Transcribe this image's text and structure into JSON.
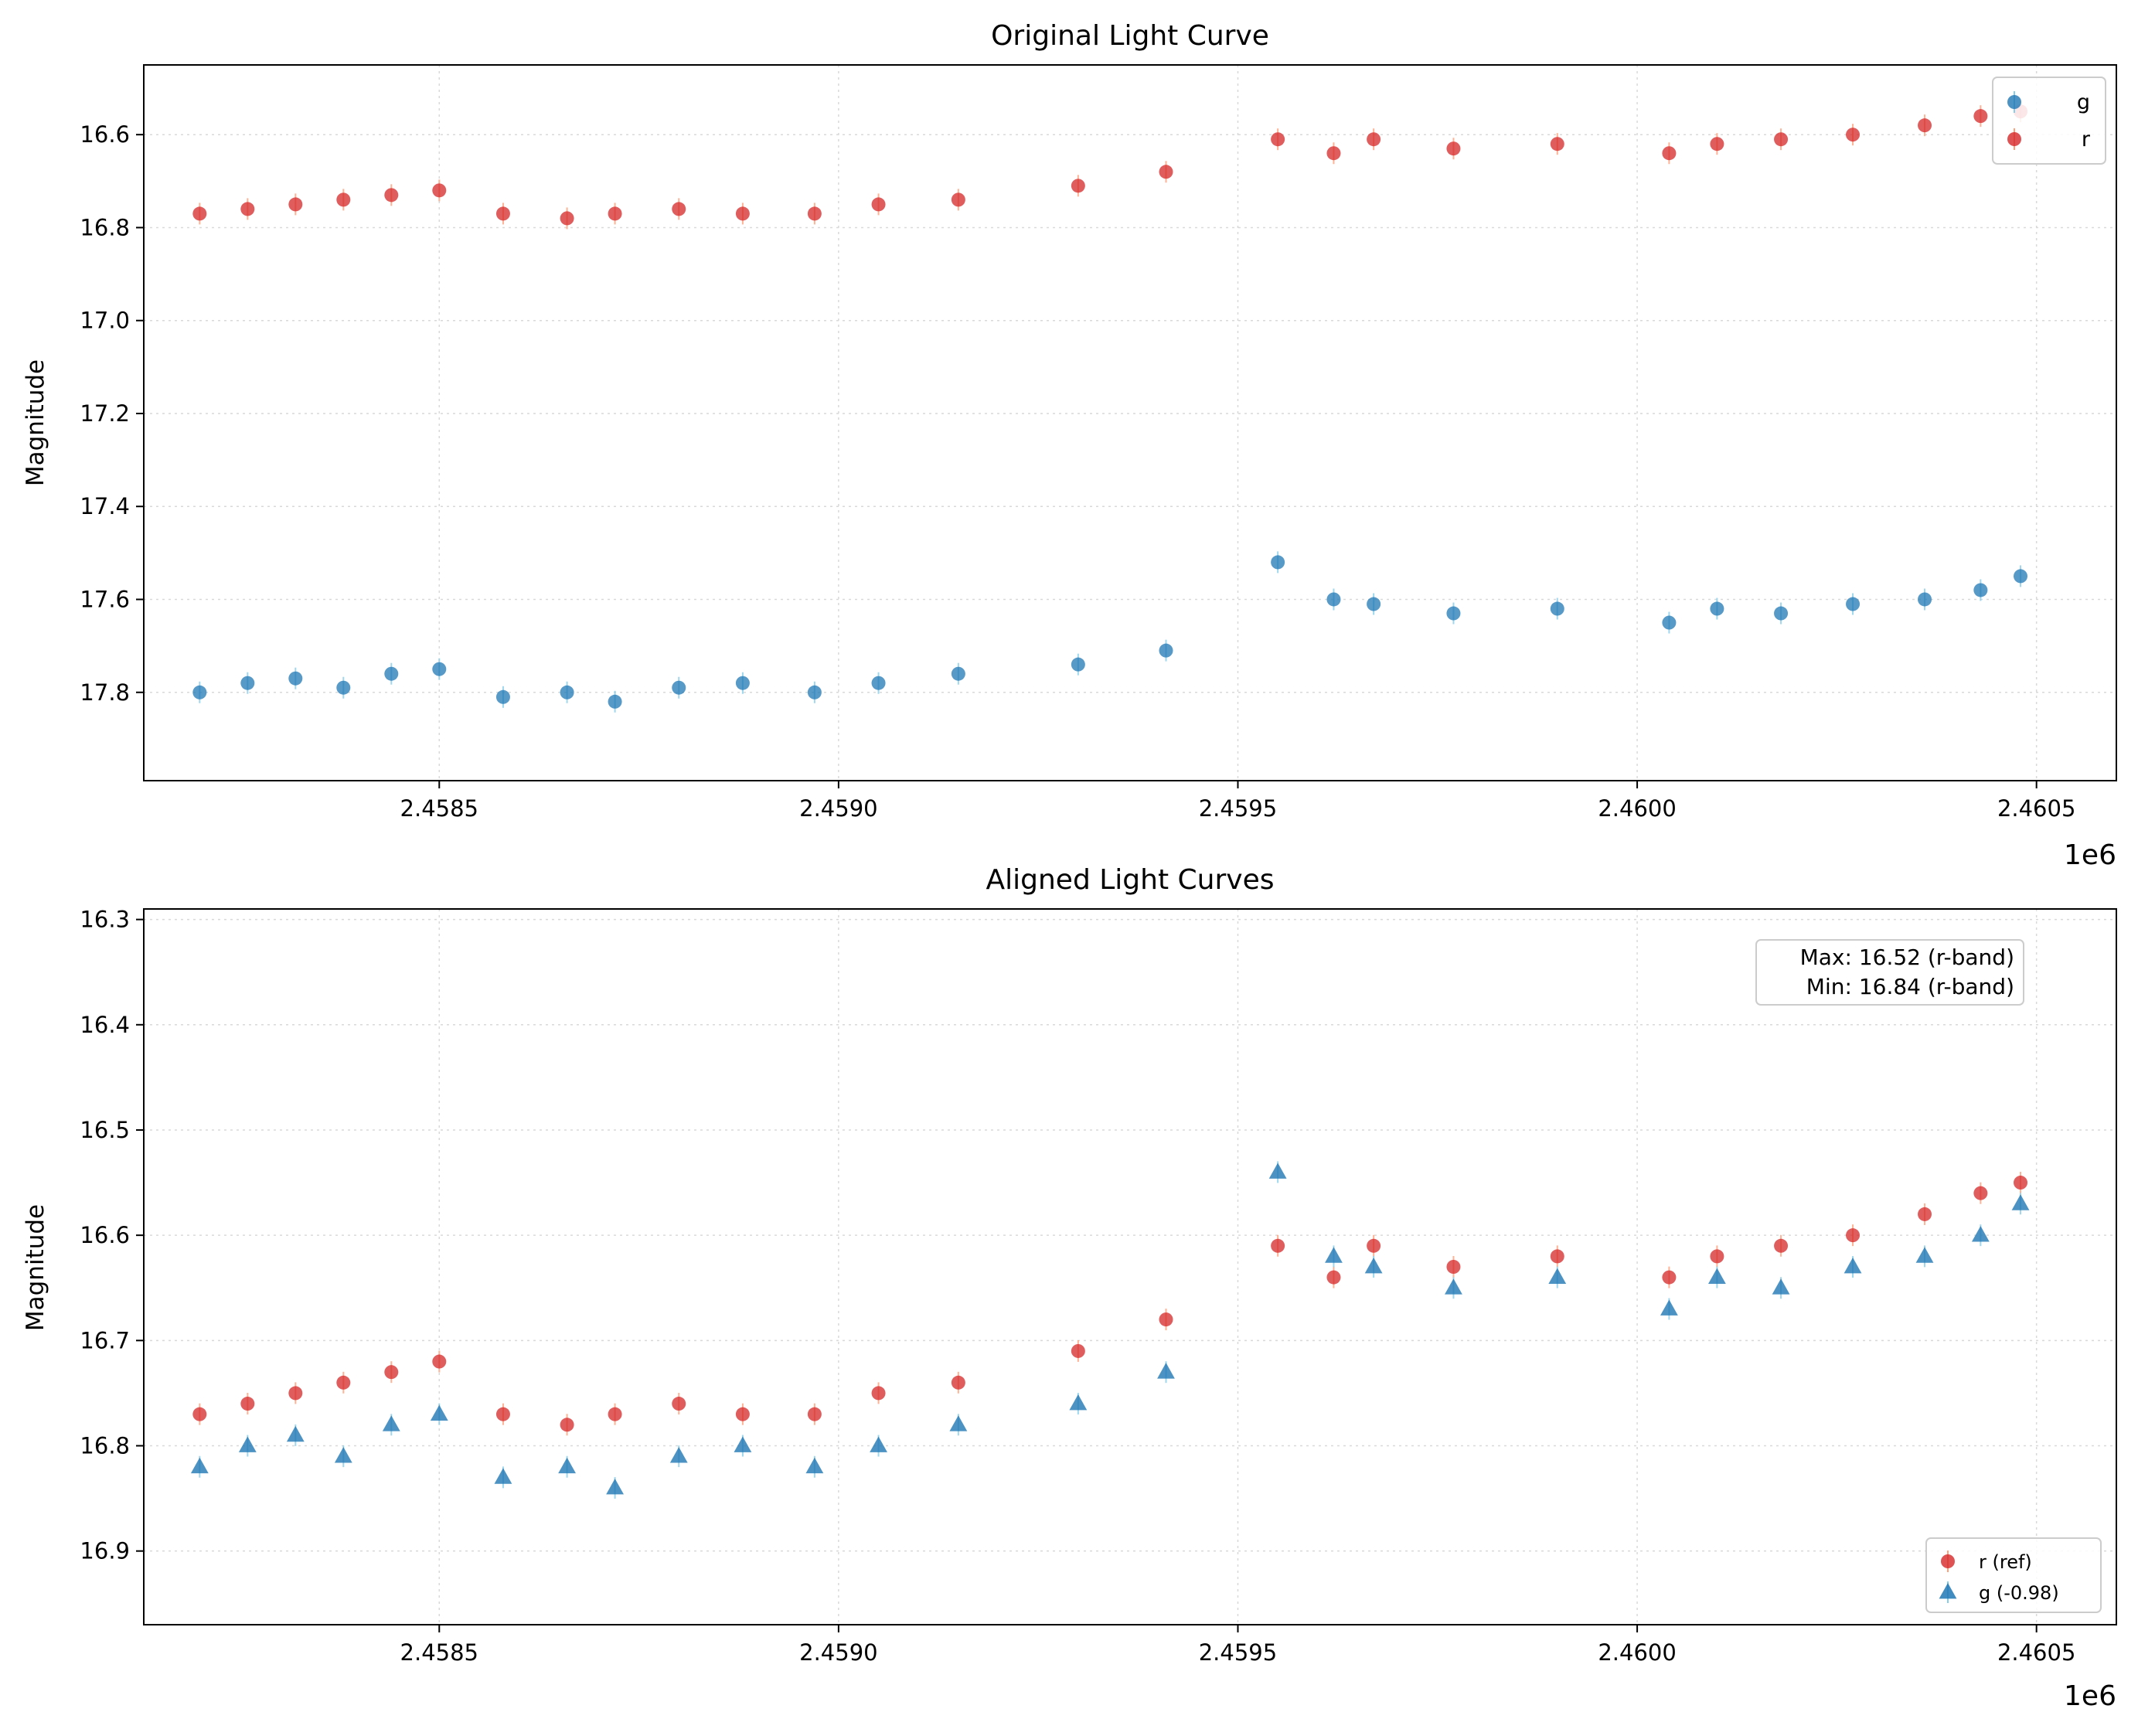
{
  "colors": {
    "g": "#1f77b4",
    "g_err": "#87ceeb",
    "r": "#d62728",
    "r_err": "#ffa07a",
    "grid": "#d9d9d9"
  },
  "chart_data": [
    {
      "type": "scatter",
      "title": "Original Light Curve",
      "xlabel": "",
      "ylabel": "Magnitude",
      "x_offset_label": "1e6",
      "xlim": [
        2.45813,
        2.4606
      ],
      "ylim": [
        17.99,
        16.45
      ],
      "y_inverted": true,
      "grid": true,
      "legend_position": "top-right",
      "xticks": [
        2.4585,
        2.459,
        2.4595,
        2.46,
        2.4605
      ],
      "xtick_labels": [
        "2.4585",
        "2.4590",
        "2.4595",
        "2.4600",
        "2.4605"
      ],
      "yticks": [
        16.6,
        16.8,
        17.0,
        17.2,
        17.4,
        17.6,
        17.8
      ],
      "ytick_labels": [
        "16.6",
        "16.8",
        "17.0",
        "17.2",
        "17.4",
        "17.6",
        "17.8"
      ],
      "series": [
        {
          "name": "g",
          "marker": "circle",
          "color": "#1f77b4",
          "x": [
            2.4582,
            2.45826,
            2.45832,
            2.45838,
            2.45844,
            2.4585,
            2.45858,
            2.45866,
            2.45872,
            2.4588,
            2.45888,
            2.45897,
            2.45905,
            2.45915,
            2.4593,
            2.45941,
            2.45955,
            2.45962,
            2.45967,
            2.45977,
            2.4599,
            2.46004,
            2.4601,
            2.46018,
            2.46027,
            2.46036,
            2.46043,
            2.46048
          ],
          "y": [
            17.8,
            17.78,
            17.77,
            17.79,
            17.76,
            17.75,
            17.81,
            17.8,
            17.82,
            17.79,
            17.78,
            17.8,
            17.78,
            17.76,
            17.74,
            17.71,
            17.52,
            17.6,
            17.61,
            17.63,
            17.62,
            17.65,
            17.62,
            17.63,
            17.61,
            17.6,
            17.58,
            17.55
          ]
        },
        {
          "name": "r",
          "marker": "circle",
          "color": "#d62728",
          "x": [
            2.4582,
            2.45826,
            2.45832,
            2.45838,
            2.45844,
            2.4585,
            2.45858,
            2.45866,
            2.45872,
            2.4588,
            2.45888,
            2.45897,
            2.45905,
            2.45915,
            2.4593,
            2.45941,
            2.45955,
            2.45962,
            2.45967,
            2.45977,
            2.4599,
            2.46004,
            2.4601,
            2.46018,
            2.46027,
            2.46036,
            2.46043,
            2.46048
          ],
          "y": [
            16.77,
            16.76,
            16.75,
            16.74,
            16.73,
            16.72,
            16.77,
            16.78,
            16.77,
            16.76,
            16.77,
            16.77,
            16.75,
            16.74,
            16.71,
            16.68,
            16.61,
            16.64,
            16.61,
            16.63,
            16.62,
            16.64,
            16.62,
            16.61,
            16.6,
            16.58,
            16.56,
            16.55
          ]
        }
      ]
    },
    {
      "type": "scatter",
      "title": "Aligned Light Curves",
      "xlabel": "",
      "ylabel": "Magnitude",
      "x_offset_label": "1e6",
      "xlim": [
        2.45813,
        2.4606
      ],
      "ylim": [
        16.97,
        16.29
      ],
      "y_inverted": true,
      "grid": true,
      "legend_position": "bottom-right",
      "xticks": [
        2.4585,
        2.459,
        2.4595,
        2.46,
        2.4605
      ],
      "xtick_labels": [
        "2.4585",
        "2.4590",
        "2.4595",
        "2.4600",
        "2.4605"
      ],
      "yticks": [
        16.3,
        16.4,
        16.5,
        16.6,
        16.7,
        16.8,
        16.9
      ],
      "ytick_labels": [
        "16.3",
        "16.4",
        "16.5",
        "16.6",
        "16.7",
        "16.8",
        "16.9"
      ],
      "annotation": [
        "Max: 16.52 (r-band)",
        "Min: 16.84 (r-band)"
      ],
      "series": [
        {
          "name": "r (ref)",
          "marker": "circle",
          "color": "#d62728",
          "x": [
            2.4582,
            2.45826,
            2.45832,
            2.45838,
            2.45844,
            2.4585,
            2.45858,
            2.45866,
            2.45872,
            2.4588,
            2.45888,
            2.45897,
            2.45905,
            2.45915,
            2.4593,
            2.45941,
            2.45955,
            2.45962,
            2.45967,
            2.45977,
            2.4599,
            2.46004,
            2.4601,
            2.46018,
            2.46027,
            2.46036,
            2.46043,
            2.46048
          ],
          "y": [
            16.77,
            16.76,
            16.75,
            16.74,
            16.73,
            16.72,
            16.77,
            16.78,
            16.77,
            16.76,
            16.77,
            16.77,
            16.75,
            16.74,
            16.71,
            16.68,
            16.61,
            16.64,
            16.61,
            16.63,
            16.62,
            16.64,
            16.62,
            16.61,
            16.6,
            16.58,
            16.56,
            16.55
          ]
        },
        {
          "name": "g (-0.98)",
          "marker": "triangle",
          "color": "#1f77b4",
          "x": [
            2.4582,
            2.45826,
            2.45832,
            2.45838,
            2.45844,
            2.4585,
            2.45858,
            2.45866,
            2.45872,
            2.4588,
            2.45888,
            2.45897,
            2.45905,
            2.45915,
            2.4593,
            2.45941,
            2.45955,
            2.45962,
            2.45967,
            2.45977,
            2.4599,
            2.46004,
            2.4601,
            2.46018,
            2.46027,
            2.46036,
            2.46043,
            2.46048
          ],
          "y": [
            16.82,
            16.8,
            16.79,
            16.81,
            16.78,
            16.77,
            16.83,
            16.82,
            16.84,
            16.81,
            16.8,
            16.82,
            16.8,
            16.78,
            16.76,
            16.73,
            16.54,
            16.62,
            16.63,
            16.65,
            16.64,
            16.67,
            16.64,
            16.65,
            16.63,
            16.62,
            16.6,
            16.57
          ]
        }
      ]
    }
  ]
}
